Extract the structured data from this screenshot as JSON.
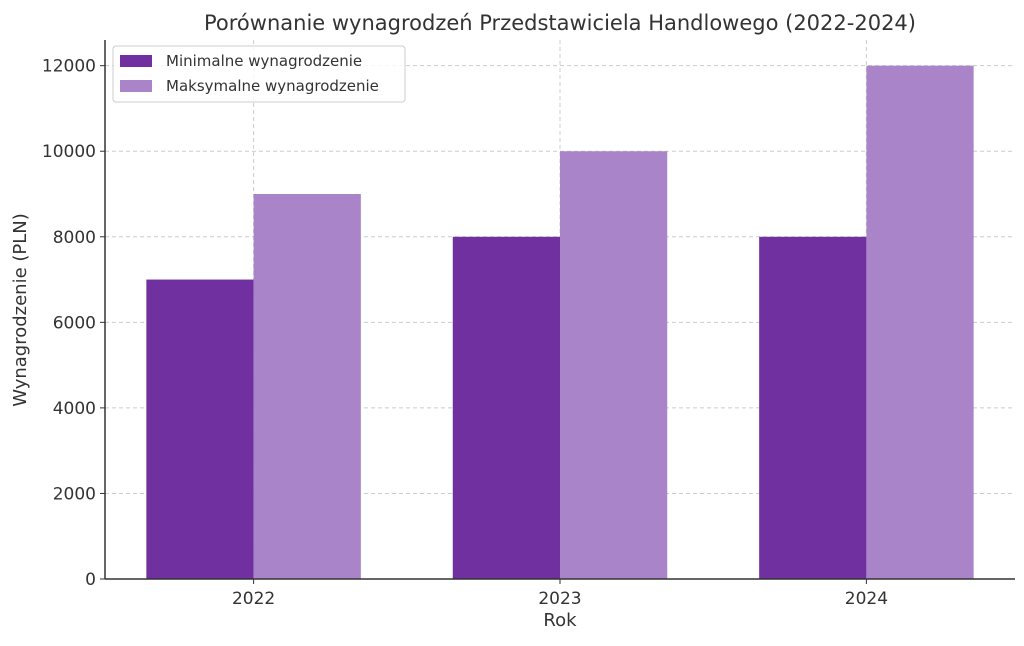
{
  "chart_data": {
    "type": "bar",
    "title": "Porównanie wynagrodzeń Przedstawiciela Handlowego (2022-2024)",
    "xlabel": "Rok",
    "ylabel": "Wynagrodzenie (PLN)",
    "categories": [
      "2022",
      "2023",
      "2024"
    ],
    "series": [
      {
        "name": "Minimalne wynagrodzenie",
        "values": [
          7000,
          8000,
          8000
        ],
        "color": "#7030A0"
      },
      {
        "name": "Maksymalne wynagrodzenie",
        "values": [
          9000,
          10000,
          12000
        ],
        "color": "#A984C8"
      }
    ],
    "ylim": [
      0,
      12600
    ],
    "yticks": [
      0,
      2000,
      4000,
      6000,
      8000,
      10000,
      12000
    ],
    "grid": true,
    "legend": "top-left"
  }
}
